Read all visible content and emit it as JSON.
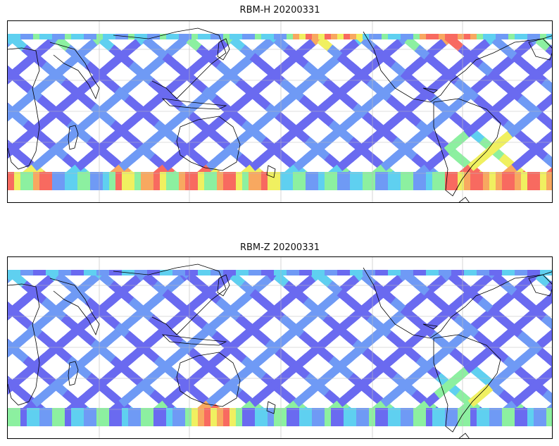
{
  "panels": [
    {
      "title": "RBM-H 20200331",
      "variant": "h"
    },
    {
      "title": "RBM-Z 20200331",
      "variant": "z"
    }
  ],
  "colors": {
    "track": "#6a6af0",
    "track_alt": "#6f9af5",
    "cyan": "#5fd0f0",
    "green": "#8cf0a0",
    "yellow": "#f0f060",
    "orange": "#f8a860",
    "red": "#f86a60",
    "coast": "#000000",
    "grid": "#bbbbbb"
  }
}
